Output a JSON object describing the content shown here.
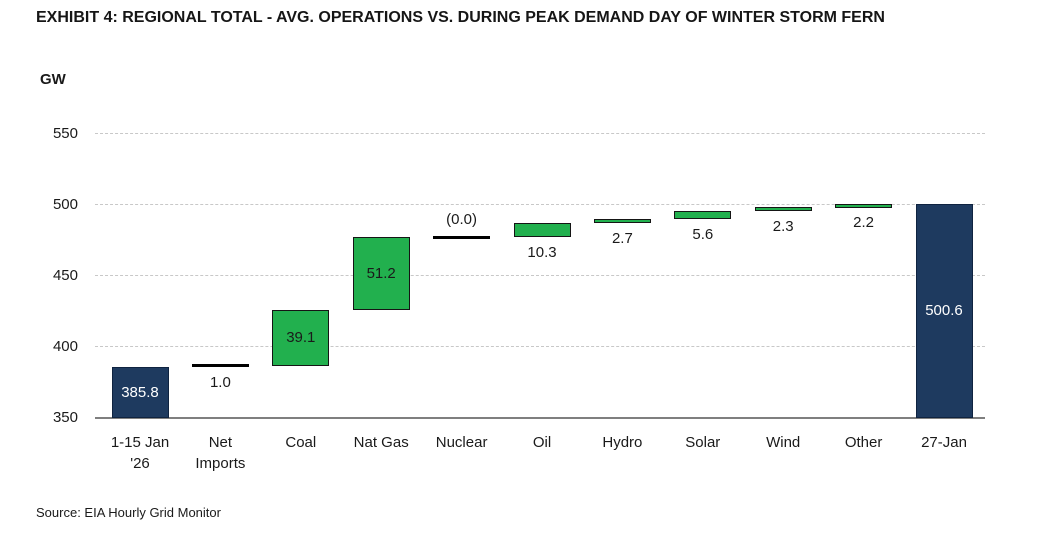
{
  "header": {
    "title": "EXHIBIT 4: REGIONAL TOTAL - AVG. OPERATIONS VS. DURING PEAK DEMAND DAY OF WINTER STORM FERN"
  },
  "source": "Source: EIA Hourly Grid Monitor",
  "chart_data": {
    "type": "waterfall",
    "title": "EXHIBIT 4: REGIONAL TOTAL - AVG. OPERATIONS VS. DURING PEAK DEMAND DAY OF WINTER STORM FERN",
    "unit_label": "GW",
    "y_axis": {
      "min": 350,
      "max": 550,
      "tick_interval": 50,
      "ticks": [
        550,
        500,
        450,
        400,
        350
      ],
      "gridlines": "dashed"
    },
    "legend": "none",
    "colors": {
      "total_bar": "#1e3a5f",
      "total_bar_border": "#0f2340",
      "increase_bar": "#22b04e",
      "increase_bar_border": "#151515",
      "connector_line": "#000000",
      "gridline": "#c8c8c8",
      "axis_line": "#7f7f7f",
      "value_inside_total_text": "#ffffff",
      "value_text": "#1a1a1a"
    },
    "categories": [
      "1-15 Jan '26",
      "Net Imports",
      "Coal",
      "Nat Gas",
      "Nuclear",
      "Oil",
      "Hydro",
      "Solar",
      "Wind",
      "Other",
      "27-Jan"
    ],
    "items": [
      {
        "category": "1-15 Jan '26",
        "label_lines": [
          "1-15 Jan",
          "'26"
        ],
        "kind": "total",
        "start": 350,
        "end": 385.8,
        "value": 385.8,
        "value_label": "385.8",
        "label_placement": "inside"
      },
      {
        "category": "Net Imports",
        "label_lines": [
          "Net",
          "Imports"
        ],
        "kind": "connector",
        "level": 386.8,
        "value": 1.0,
        "value_label": "1.0",
        "label_placement": "below"
      },
      {
        "category": "Coal",
        "label_lines": [
          "Coal"
        ],
        "kind": "increase",
        "start": 386.8,
        "end": 425.9,
        "value": 39.1,
        "value_label": "39.1",
        "label_placement": "inside"
      },
      {
        "category": "Nat Gas",
        "label_lines": [
          "Nat Gas"
        ],
        "kind": "increase",
        "start": 425.9,
        "end": 477.1,
        "value": 51.2,
        "value_label": "51.2",
        "label_placement": "inside"
      },
      {
        "category": "Nuclear",
        "label_lines": [
          "Nuclear"
        ],
        "kind": "connector",
        "level": 477.1,
        "value": 0.0,
        "value_label": "(0.0)",
        "label_placement": "above"
      },
      {
        "category": "Oil",
        "label_lines": [
          "Oil"
        ],
        "kind": "increase",
        "start": 477.1,
        "end": 487.4,
        "value": 10.3,
        "value_label": "10.3",
        "label_placement": "below"
      },
      {
        "category": "Hydro",
        "label_lines": [
          "Hydro"
        ],
        "kind": "increase",
        "start": 487.4,
        "end": 490.1,
        "value": 2.7,
        "value_label": "2.7",
        "label_placement": "below"
      },
      {
        "category": "Solar",
        "label_lines": [
          "Solar"
        ],
        "kind": "increase",
        "start": 490.1,
        "end": 495.7,
        "value": 5.6,
        "value_label": "5.6",
        "label_placement": "below"
      },
      {
        "category": "Wind",
        "label_lines": [
          "Wind"
        ],
        "kind": "increase",
        "start": 495.7,
        "end": 498.0,
        "value": 2.3,
        "value_label": "2.3",
        "label_placement": "below"
      },
      {
        "category": "Other",
        "label_lines": [
          "Other"
        ],
        "kind": "increase",
        "start": 498.0,
        "end": 500.2,
        "value": 2.2,
        "value_label": "2.2",
        "label_placement": "below"
      },
      {
        "category": "27-Jan",
        "label_lines": [
          "27-Jan"
        ],
        "kind": "total",
        "start": 350,
        "end": 500.6,
        "value": 500.6,
        "value_label": "500.6",
        "label_placement": "inside"
      }
    ]
  }
}
